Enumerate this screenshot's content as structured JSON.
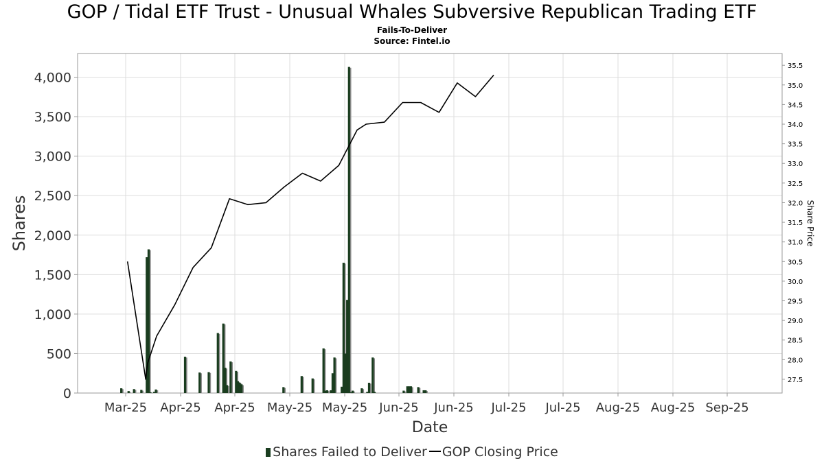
{
  "title": "GOP / Tidal ETF Trust - Unusual Whales Subversive Republican Trading ETF",
  "subtitle": "Fails-To-Deliver",
  "source": "Source: Fintel.io",
  "legend": {
    "bars": "Shares Failed to Deliver",
    "line": "GOP Closing Price"
  },
  "chart_data": {
    "type": "bar",
    "xlabel": "Date",
    "ylabel": "Shares",
    "y2label": "Share Price",
    "ylim": [
      0,
      4300
    ],
    "y2lim": [
      27.15,
      35.8
    ],
    "grid": true,
    "legend_position": "bottom",
    "x_ticks": [
      "Mar-25",
      "Apr-25",
      "Apr-25",
      "May-25",
      "May-25",
      "Jun-25",
      "Jun-25",
      "Jul-25",
      "Jul-25",
      "Aug-25",
      "Aug-25",
      "Sep-25"
    ],
    "y_ticks": [
      0,
      500,
      1000,
      1500,
      2000,
      2500,
      3000,
      3500,
      4000
    ],
    "y2_ticks": [
      27.5,
      28.0,
      28.5,
      29.0,
      29.5,
      30.0,
      30.5,
      31.0,
      31.5,
      32.0,
      32.5,
      33.0,
      33.5,
      34.0,
      34.5,
      35.0,
      35.5
    ],
    "colors": {
      "bar": "#1a3d1f",
      "bar_shadow": "#8a8a8a",
      "line": "#000000",
      "grid": "#dddddd",
      "axis": "#999999"
    },
    "series": [
      {
        "name": "Shares Failed to Deliver",
        "type": "bar",
        "x": [
          "2025-03-10",
          "2025-03-14",
          "2025-03-17",
          "2025-03-21",
          "2025-03-24",
          "2025-03-25",
          "2025-03-26",
          "2025-03-28",
          "2025-03-29",
          "2025-04-14",
          "2025-04-22",
          "2025-04-27",
          "2025-05-02",
          "2025-05-05",
          "2025-05-06",
          "2025-05-07",
          "2025-05-09",
          "2025-05-12",
          "2025-05-13",
          "2025-05-14",
          "2025-05-15",
          "2025-06-07",
          "2025-06-17",
          "2025-06-23",
          "2025-06-29",
          "2025-06-30",
          "2025-07-01",
          "2025-07-03",
          "2025-07-04",
          "2025-07-05",
          "2025-07-09",
          "2025-07-10",
          "2025-07-11",
          "2025-07-12",
          "2025-07-13",
          "2025-07-14",
          "2025-07-15",
          "2025-07-20",
          "2025-07-23",
          "2025-07-24",
          "2025-07-26",
          "2025-07-27",
          "2025-08-12",
          "2025-08-14",
          "2025-08-15",
          "2025-08-16",
          "2025-08-20",
          "2025-08-23",
          "2025-08-24"
        ],
        "values": [
          60,
          25,
          50,
          40,
          1720,
          1820,
          10,
          15,
          45,
          460,
          260,
          265,
          760,
          880,
          320,
          100,
          400,
          280,
          150,
          130,
          110,
          75,
          215,
          185,
          565,
          30,
          35,
          35,
          250,
          450,
          80,
          1650,
          500,
          1180,
          4130,
          10,
          30,
          60,
          15,
          130,
          450,
          15,
          30,
          85,
          85,
          85,
          75,
          35,
          35
        ]
      },
      {
        "name": "GOP Closing Price",
        "type": "line",
        "x": [
          "2025-03-14",
          "2025-03-24",
          "2025-03-25",
          "2025-03-30",
          "2025-04-09",
          "2025-04-19",
          "2025-04-29",
          "2025-05-09",
          "2025-05-19",
          "2025-05-29",
          "2025-06-08",
          "2025-06-18",
          "2025-06-28",
          "2025-07-08",
          "2025-07-18",
          "2025-07-23",
          "2025-08-02",
          "2025-08-12",
          "2025-08-22",
          "2025-09-01",
          "2025-09-11",
          "2025-09-21",
          "2025-10-01"
        ],
        "values": [
          30.5,
          27.5,
          27.9,
          28.6,
          29.4,
          30.35,
          30.85,
          32.1,
          31.95,
          32.0,
          32.4,
          32.75,
          32.55,
          32.95,
          33.85,
          34.0,
          34.05,
          34.55,
          34.55,
          34.3,
          35.05,
          34.7,
          35.25
        ]
      }
    ]
  }
}
